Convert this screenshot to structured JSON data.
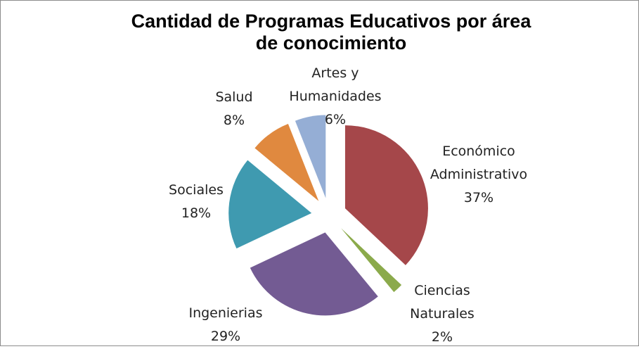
{
  "chart_data": {
    "type": "pie",
    "title": "Cantidad de Programas Educativos por área de conocimiento",
    "categories": [
      "Económico Administrativo",
      "Ciencias Naturales",
      "Ingenierias",
      "Sociales",
      "Salud",
      "Artes y Humanidades"
    ],
    "values": [
      37,
      2,
      29,
      18,
      8,
      6
    ],
    "value_labels": [
      "37%",
      "2%",
      "29%",
      "18%",
      "8%",
      "6%"
    ],
    "colors": [
      "#a5474a",
      "#8baa4b",
      "#735b93",
      "#3f9ab0",
      "#e0893f",
      "#95aed5"
    ]
  }
}
